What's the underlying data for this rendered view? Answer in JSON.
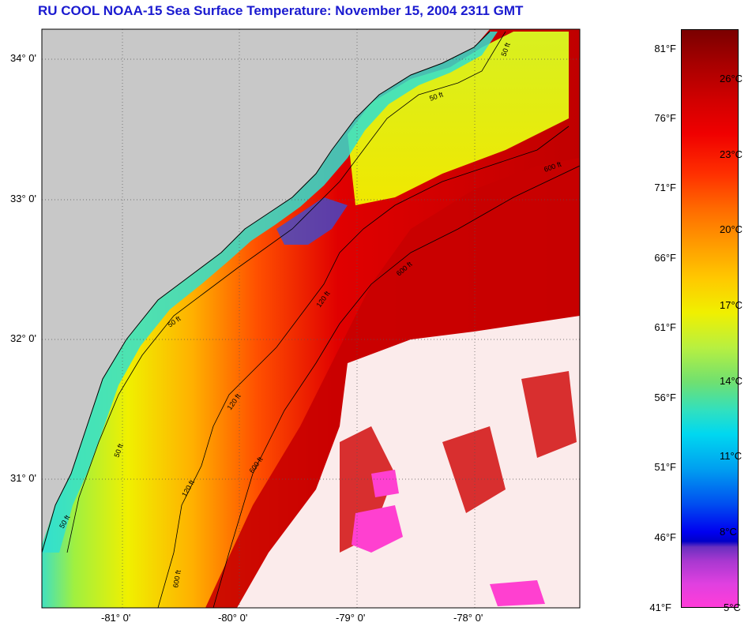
{
  "title": "RU COOL  NOAA-15  Sea Surface Temperature:  November 15, 2004 2311 GMT",
  "map": {
    "lat_ticks": [
      "34° 0'",
      "33° 0'",
      "32° 0'",
      "31° 0'"
    ],
    "lon_ticks": [
      "-81° 0'",
      "-80° 0'",
      "-79° 0'",
      "-78° 0'"
    ],
    "contour_labels": [
      "50 ft",
      "50 ft",
      "50 ft",
      "50 ft",
      "50 ft",
      "120 ft",
      "120 ft",
      "120 ft",
      "600 ft",
      "600 ft",
      "600 ft",
      "600 ft"
    ],
    "colors": {
      "land": "#c8c8c8",
      "cloud": "#ffffff"
    }
  },
  "colorbar": {
    "fahrenheit": [
      "81°F",
      "76°F",
      "71°F",
      "66°F",
      "61°F",
      "56°F",
      "51°F",
      "46°F",
      "41°F"
    ],
    "celsius": [
      "26°C",
      "23°C",
      "20°C",
      "17°C",
      "14°C",
      "11°C",
      "8°C",
      "5°C"
    ]
  }
}
